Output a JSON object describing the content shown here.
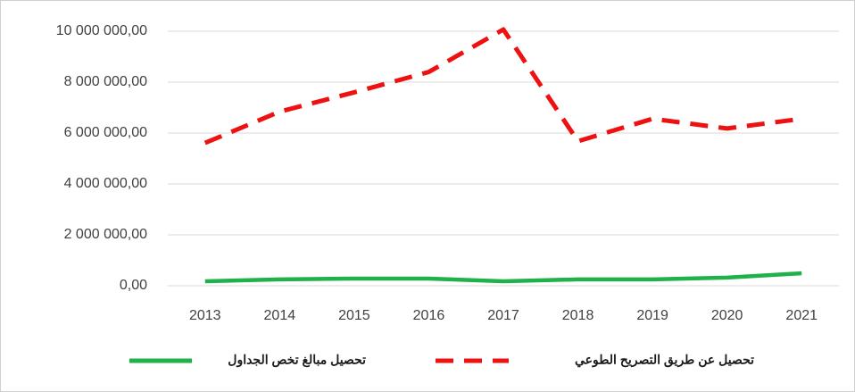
{
  "chart_data": {
    "type": "line",
    "categories": [
      "2013",
      "2014",
      "2015",
      "2016",
      "2017",
      "2018",
      "2019",
      "2020",
      "2021"
    ],
    "series": [
      {
        "name": "تحصيل مبالغ تخص الجداول",
        "color": "#1fb14a",
        "style": "solid",
        "values": [
          175000,
          250000,
          280000,
          280000,
          175000,
          250000,
          250000,
          320000,
          490000
        ]
      },
      {
        "name": "تحصيل عن طريق التصريح الطوعي",
        "color": "#ee1111",
        "style": "dashed",
        "values": [
          5610000,
          6840000,
          7600000,
          8400000,
          10070000,
          5680000,
          6560000,
          6180000,
          6560000
        ]
      }
    ],
    "ylim": [
      0,
      10000000
    ],
    "yticks": [
      {
        "value": 0,
        "label": "0,00"
      },
      {
        "value": 2000000,
        "label": "2 000 000,00"
      },
      {
        "value": 4000000,
        "label": "4 000 000,00"
      },
      {
        "value": 6000000,
        "label": "6 000 000,00"
      },
      {
        "value": 8000000,
        "label": "8 000 000,00"
      },
      {
        "value": 10000000,
        "label": "10 000 000,00"
      }
    ],
    "grid": true,
    "legend": "bottom"
  }
}
